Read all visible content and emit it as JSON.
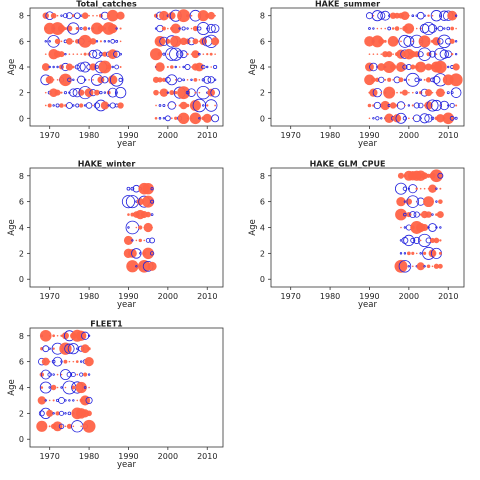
{
  "figure": {
    "colors": {
      "observed_fill": "#ff6347",
      "expected_outline": "#2222dd",
      "frame": "#333333"
    }
  },
  "chart_data": [
    {
      "type": "scatter",
      "title": "Total_catches",
      "xlabel": "year",
      "ylabel": "Age",
      "xlim": [
        1965,
        2014
      ],
      "ylim": [
        -0.6,
        8.6
      ],
      "xticks": [
        1970,
        1980,
        1990,
        2000,
        2010
      ],
      "yticks": [
        0,
        2,
        4,
        6,
        8
      ],
      "grid": false,
      "series": [
        {
          "years": [
            1969,
            1988
          ],
          "yearStep": 1,
          "ages": [
            1,
            2,
            3,
            4,
            5,
            6,
            7,
            8
          ],
          "seed": 11
        },
        {
          "years": [
            1997,
            2012
          ],
          "yearStep": 1,
          "ages": [
            0,
            1,
            2,
            3,
            4,
            5,
            6,
            7,
            8
          ],
          "seed": 12
        }
      ]
    },
    {
      "type": "scatter",
      "title": "HAKE_summer",
      "xlabel": "year",
      "ylabel": "Age",
      "xlim": [
        1965,
        2014
      ],
      "ylim": [
        -0.6,
        8.6
      ],
      "xticks": [
        1970,
        1980,
        1990,
        2000,
        2010
      ],
      "yticks": [
        0,
        2,
        4,
        6,
        8
      ],
      "grid": false,
      "series": [
        {
          "years": [
            1990,
            2012
          ],
          "yearStep": 1,
          "ages": [
            0,
            1,
            2,
            3,
            4,
            5,
            6,
            7,
            8
          ],
          "seed": 21
        }
      ]
    },
    {
      "type": "scatter",
      "title": "HAKE_winter",
      "xlabel": "year",
      "ylabel": "Age",
      "xlim": [
        1965,
        2014
      ],
      "ylim": [
        -0.6,
        8.6
      ],
      "xticks": [
        1970,
        1980,
        1990,
        2000,
        2010
      ],
      "yticks": [
        0,
        2,
        4,
        6,
        8
      ],
      "grid": false,
      "series": [
        {
          "years": [
            1990,
            1996
          ],
          "yearStep": 1,
          "ages": [
            1,
            2,
            3,
            4,
            5,
            6,
            7
          ],
          "seed": 31
        }
      ]
    },
    {
      "type": "scatter",
      "title": "HAKE_GLM_CPUE",
      "xlabel": "year",
      "ylabel": "Age",
      "xlim": [
        1965,
        2014
      ],
      "ylim": [
        -0.6,
        8.6
      ],
      "xticks": [
        1970,
        1980,
        1990,
        2000,
        2010
      ],
      "yticks": [
        0,
        2,
        4,
        6,
        8
      ],
      "grid": false,
      "series": [
        {
          "years": [
            1998,
            2008
          ],
          "yearStep": 1,
          "ages": [
            1,
            2,
            3,
            4,
            5,
            6,
            7,
            8
          ],
          "seed": 41
        }
      ]
    },
    {
      "type": "scatter",
      "title": "FLEET1",
      "xlabel": "year",
      "ylabel": "Age",
      "xlim": [
        1965,
        2014
      ],
      "ylim": [
        -0.6,
        8.6
      ],
      "xticks": [
        1970,
        1980,
        1990,
        2000,
        2010
      ],
      "yticks": [
        0,
        2,
        4,
        6,
        8
      ],
      "grid": false,
      "series": [
        {
          "years": [
            1968,
            1980
          ],
          "yearStep": 1,
          "ages": [
            1,
            2,
            3,
            4,
            5,
            6,
            7,
            8
          ],
          "seed": 51
        }
      ]
    }
  ]
}
